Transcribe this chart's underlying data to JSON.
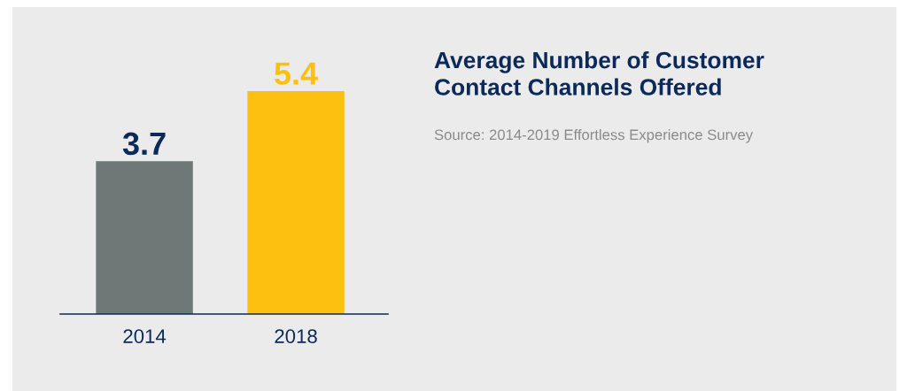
{
  "chart_data": {
    "type": "bar",
    "title": "Average Number of Customer\nContact Channels Offered",
    "annotations": [
      "Source: 2014-2019 Effortless Experience Survey"
    ],
    "categories": [
      "2014",
      "2018"
    ],
    "values": [
      3.7,
      5.4
    ],
    "colors": [
      "#6e7877",
      "#fdc010"
    ],
    "data_labels": true,
    "grid": false
  }
}
